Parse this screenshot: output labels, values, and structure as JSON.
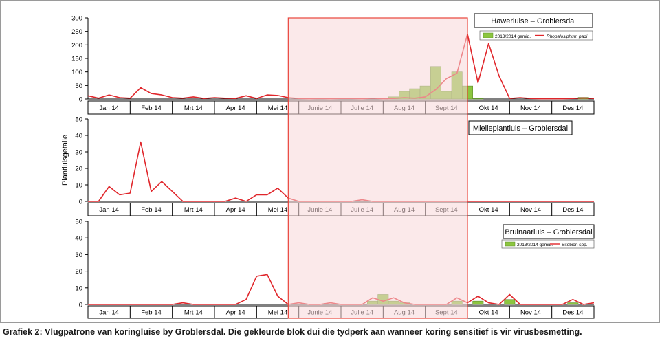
{
  "figure": {
    "ylabel": "Plantluisgetalle",
    "months": [
      "Jan 14",
      "Feb 14",
      "Mrt 14",
      "Apr 14",
      "Mei 14",
      "Junie 14",
      "Julie 14",
      "Aug 14",
      "Sept 14",
      "Okt 14",
      "Nov 14",
      "Des 14"
    ],
    "colors": {
      "line": "#e0262b",
      "bar": "#8cc63f",
      "bar_edge": "#5c8a2a",
      "highlight_fill": "#f7d7d9",
      "highlight_edge": "#e8443a",
      "axis": "#000000",
      "grid": "#c8c8c8"
    }
  },
  "chart_data": [
    {
      "type": "line",
      "title": "Hawerluise – Groblersdal",
      "ylim": [
        0,
        300
      ],
      "yticks": [
        0,
        50,
        100,
        150,
        200,
        250,
        300
      ],
      "legend": {
        "bar_label": "2013/2014 gemid.",
        "line_label": "Rhopalosiphum padi",
        "placement": "top-right"
      },
      "x": [
        0.0,
        0.25,
        0.5,
        0.75,
        1.0,
        1.25,
        1.5,
        1.75,
        2.0,
        2.25,
        2.5,
        2.75,
        3.0,
        3.25,
        3.5,
        3.75,
        4.0,
        4.25,
        4.5,
        4.75,
        5.0,
        5.25,
        5.5,
        5.75,
        6.0,
        6.25,
        6.5,
        6.75,
        7.0,
        7.25,
        7.5,
        7.75,
        8.0,
        8.25,
        8.5,
        8.75,
        9.0,
        9.25,
        9.5,
        9.75,
        10.0,
        10.25,
        10.5,
        10.75,
        11.0,
        11.25,
        11.5,
        11.75,
        12.0
      ],
      "series": [
        {
          "name": "Rhopalosiphum padi",
          "kind": "line",
          "values": [
            12,
            3,
            15,
            5,
            3,
            42,
            20,
            15,
            5,
            3,
            8,
            2,
            5,
            3,
            2,
            12,
            2,
            15,
            13,
            5,
            2,
            1,
            2,
            1,
            2,
            2,
            1,
            3,
            1,
            2,
            5,
            3,
            8,
            35,
            75,
            95,
            240,
            60,
            205,
            85,
            2,
            5,
            2,
            1,
            1,
            1,
            2,
            4,
            2
          ]
        },
        {
          "name": "2013/2014 gemid.",
          "kind": "bar",
          "x": [
            7.25,
            7.5,
            7.75,
            8.0,
            8.25,
            8.5,
            8.75,
            9.0,
            9.25,
            11.75
          ],
          "values": [
            8,
            28,
            38,
            48,
            120,
            28,
            100,
            48,
            2,
            6
          ]
        }
      ]
    },
    {
      "type": "line",
      "title": "Mielieplantluis – Groblersdal",
      "ylim": [
        0,
        50
      ],
      "yticks": [
        0,
        10,
        20,
        30,
        40,
        50
      ],
      "x": [
        0.0,
        0.25,
        0.5,
        0.75,
        1.0,
        1.25,
        1.5,
        1.75,
        2.0,
        2.25,
        2.5,
        2.75,
        3.0,
        3.25,
        3.5,
        3.75,
        4.0,
        4.25,
        4.5,
        4.75,
        5.0,
        5.25,
        5.5,
        5.75,
        6.0,
        6.25,
        6.5,
        6.75,
        7.0,
        7.25,
        7.5,
        7.75,
        8.0,
        8.25,
        8.5,
        8.75,
        9.0,
        9.25,
        9.5,
        9.75,
        10.0,
        10.25,
        10.5,
        10.75,
        11.0,
        11.25,
        11.5,
        11.75,
        12.0
      ],
      "series": [
        {
          "name": "",
          "kind": "line",
          "values": [
            0,
            0,
            9,
            4,
            5,
            36,
            6,
            12,
            6,
            0,
            0,
            0,
            0,
            0,
            2,
            0,
            4,
            4,
            8,
            2,
            0,
            0,
            0,
            0,
            0,
            0,
            1,
            0,
            0,
            0,
            0,
            0,
            0,
            0,
            0,
            0,
            0,
            0,
            0,
            0,
            0,
            0,
            0,
            0,
            0,
            0,
            0,
            0,
            0
          ]
        }
      ]
    },
    {
      "type": "line",
      "title": "Bruinaarluis – Groblersdal",
      "ylim": [
        0,
        50
      ],
      "yticks": [
        0,
        10,
        20,
        30,
        40,
        50
      ],
      "legend": {
        "bar_label": "2013/2014 gemid.",
        "line_label": "Sitobion spp.",
        "placement": "top-right"
      },
      "x": [
        0.0,
        0.25,
        0.5,
        0.75,
        1.0,
        1.25,
        1.5,
        1.75,
        2.0,
        2.25,
        2.5,
        2.75,
        3.0,
        3.25,
        3.5,
        3.75,
        4.0,
        4.25,
        4.5,
        4.75,
        5.0,
        5.25,
        5.5,
        5.75,
        6.0,
        6.25,
        6.5,
        6.75,
        7.0,
        7.25,
        7.5,
        7.75,
        8.0,
        8.25,
        8.5,
        8.75,
        9.0,
        9.25,
        9.5,
        9.75,
        10.0,
        10.25,
        10.5,
        10.75,
        11.0,
        11.25,
        11.5,
        11.75,
        12.0
      ],
      "series": [
        {
          "name": "Sitobion spp.",
          "kind": "line",
          "values": [
            0,
            0,
            0,
            0,
            0,
            0,
            0,
            0,
            0,
            1,
            0,
            0,
            0,
            0,
            0,
            3,
            17,
            18,
            5,
            0,
            1,
            0,
            0,
            1,
            0,
            0,
            0,
            4,
            2,
            4,
            1,
            0,
            0,
            0,
            0,
            4,
            1,
            5,
            1,
            0,
            6,
            0,
            0,
            0,
            0,
            0,
            3,
            0,
            1
          ]
        },
        {
          "name": "2013/2014 gemid.",
          "kind": "bar",
          "x": [
            6.75,
            7.0,
            7.25,
            7.5,
            8.75,
            9.25,
            10.0,
            11.5
          ],
          "values": [
            2,
            6,
            2,
            1,
            2,
            2,
            3,
            1
          ]
        }
      ]
    }
  ],
  "caption": {
    "lead": "Grafiek 2:",
    "text": "Vlugpatrone van koringluise by Groblersdal. Die gekleurde blok dui die tydperk aan wanneer koring sensitief is vir virusbesmetting."
  }
}
